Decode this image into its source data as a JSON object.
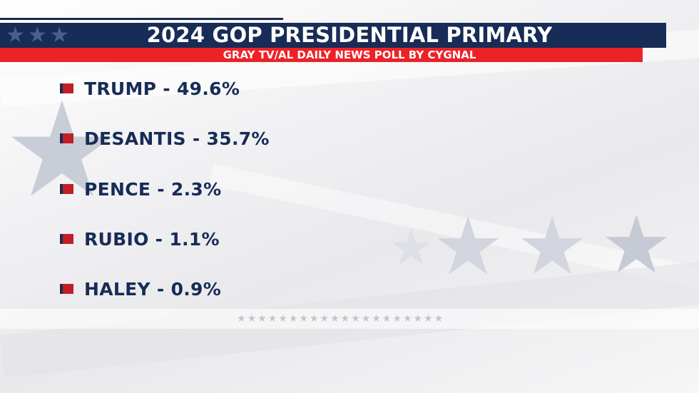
{
  "graphic": {
    "title": "2024 GOP PRESIDENTIAL PRIMARY",
    "subtitle": "GRAY TV/AL DAILY NEWS POLL BY CYGNAL"
  },
  "colors": {
    "navy": "#172c56",
    "red": "#ec2227",
    "bullet_red": "#c21e25",
    "background": "#eeeef0"
  },
  "candidates": [
    {
      "text": "TRUMP - 49.6%",
      "name": "TRUMP",
      "percent": 49.6
    },
    {
      "text": "DESANTIS - 35.7%",
      "name": "DESANTIS",
      "percent": 35.7
    },
    {
      "text": "PENCE - 2.3%",
      "name": "PENCE",
      "percent": 2.3
    },
    {
      "text": "RUBIO - 1.1%",
      "name": "RUBIO",
      "percent": 1.1
    },
    {
      "text": "HALEY - 0.9%",
      "name": "HALEY",
      "percent": 0.9
    }
  ],
  "decor": {
    "star_icon": "star-icon"
  }
}
